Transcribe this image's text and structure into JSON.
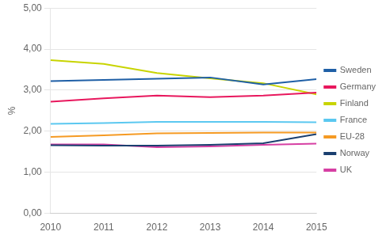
{
  "chart_data": {
    "type": "line",
    "ylabel": "%",
    "x": [
      2010,
      2011,
      2012,
      2013,
      2014,
      2015
    ],
    "xlim": [
      2010,
      2015
    ],
    "xticks": [
      2010,
      2011,
      2012,
      2013,
      2014,
      2015
    ],
    "ylim": [
      0,
      5.0
    ],
    "yticks": [
      {
        "value": 0.0,
        "label": "0,00"
      },
      {
        "value": 1.0,
        "label": "1,00"
      },
      {
        "value": 2.0,
        "label": "2,00"
      },
      {
        "value": 3.0,
        "label": "3,00"
      },
      {
        "value": 4.0,
        "label": "4,00"
      },
      {
        "value": 5.0,
        "label": "5,00"
      }
    ],
    "grid": "y",
    "legend": "right",
    "series": [
      {
        "name": "Sweden",
        "color": "#1f5fa6",
        "values": [
          3.22,
          3.25,
          3.28,
          3.31,
          3.14,
          3.27
        ]
      },
      {
        "name": "Germany",
        "color": "#e8175d",
        "values": [
          2.72,
          2.8,
          2.87,
          2.83,
          2.87,
          2.94
        ]
      },
      {
        "name": "Finland",
        "color": "#c8d400",
        "values": [
          3.73,
          3.64,
          3.42,
          3.29,
          3.17,
          2.9
        ]
      },
      {
        "name": "France",
        "color": "#5bc8f0",
        "values": [
          2.18,
          2.2,
          2.23,
          2.23,
          2.23,
          2.22
        ]
      },
      {
        "name": "EU-28",
        "color": "#f59a23",
        "values": [
          1.86,
          1.9,
          1.95,
          1.96,
          1.97,
          1.97
        ]
      },
      {
        "name": "Norway",
        "color": "#1a3f6f",
        "values": [
          1.66,
          1.65,
          1.65,
          1.67,
          1.71,
          1.93
        ]
      },
      {
        "name": "UK",
        "color": "#d63fa3",
        "values": [
          1.68,
          1.68,
          1.61,
          1.63,
          1.67,
          1.7
        ]
      }
    ]
  }
}
